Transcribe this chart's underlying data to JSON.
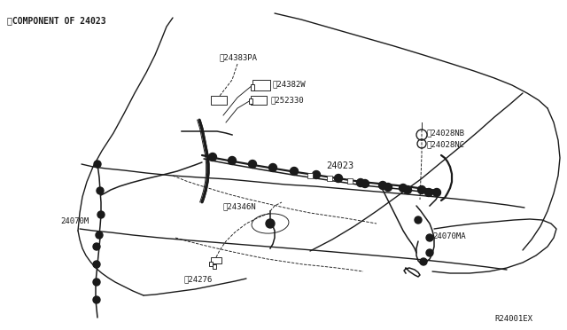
{
  "bg_color": "#ffffff",
  "line_color": "#1a1a1a",
  "text_color": "#1a1a1a",
  "fig_width": 6.4,
  "fig_height": 3.72,
  "labels": {
    "component_note": "※COMPONENT OF 24023",
    "part_24383PA": "※24383PA",
    "part_24382W": "※24382W",
    "part_252330": "※252330",
    "part_24028NB": "※24028NB",
    "part_24028NC": "※24028NC",
    "part_24023": "24023",
    "part_24070M": "24070M",
    "part_24346N": "※24346N",
    "part_24276": "※24276",
    "part_24070MA": "24070MA",
    "diagram_id": "R24001EX"
  }
}
